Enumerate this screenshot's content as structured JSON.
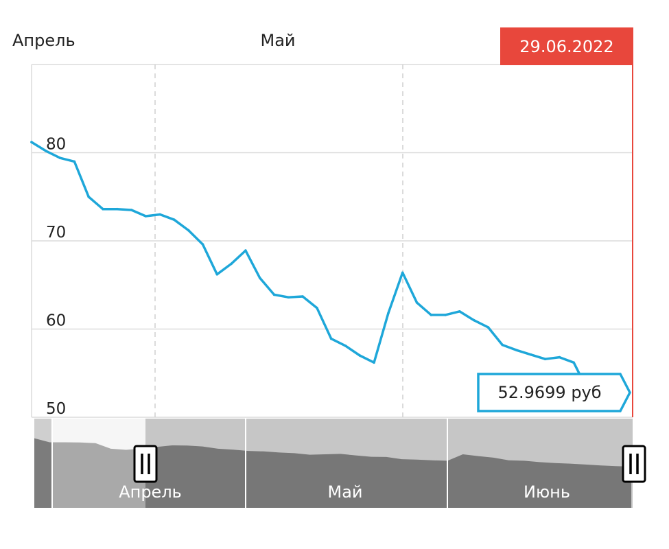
{
  "chart_data": {
    "type": "line",
    "top_month_labels": [
      "Апрель",
      "Май"
    ],
    "navigator_month_labels": [
      "Апрель",
      "Май",
      "Июнь"
    ],
    "date_badge": "29.06.2022",
    "last_value_label": "52.9699 руб",
    "y_ticks": [
      80,
      70,
      60,
      50
    ],
    "ylim": [
      50,
      90
    ],
    "grid": true,
    "series": [
      {
        "values": [
          81.2,
          80.2,
          79.4,
          79.0,
          75.0,
          73.6,
          73.6,
          73.5,
          72.8,
          73.0,
          72.4,
          71.2,
          69.6,
          66.2,
          67.4,
          68.9,
          65.8,
          63.9,
          63.6,
          63.7,
          62.4,
          58.9,
          58.1,
          57.0,
          56.2,
          61.8,
          66.4,
          63.0,
          61.6,
          61.6,
          62.0,
          61.0,
          60.2,
          58.2,
          57.6,
          57.1,
          56.6,
          56.8,
          56.2,
          52.97
        ],
        "color": "#1ea7d9"
      }
    ],
    "navigator_values": [
      81.2,
      79.4,
      79.4,
      79.3,
      79.0,
      76.5,
      76.0,
      76.6,
      77.3,
      78.0,
      77.9,
      77.5,
      76.5,
      76.1,
      75.5,
      75.3,
      74.8,
      74.5,
      73.8,
      74.0,
      74.2,
      73.5,
      72.9,
      72.8,
      71.8,
      71.6,
      71.3,
      71.1,
      74.0,
      73.2,
      72.5,
      71.3,
      71.1,
      70.5,
      70.1,
      69.8,
      69.4,
      69.0,
      68.7,
      68.5
    ],
    "colors": {
      "line": "#1ea7d9",
      "badge": "#e8473c",
      "badge_text": "#ffffff",
      "cursor": "#e8473c",
      "grid": "#dcdcdc",
      "navigator_bg": "#cfcfcf",
      "navigator_area": "#7c7c7c",
      "navigator_selected_bg": "#f2f2f2",
      "navigator_text": "#ffffff"
    }
  }
}
